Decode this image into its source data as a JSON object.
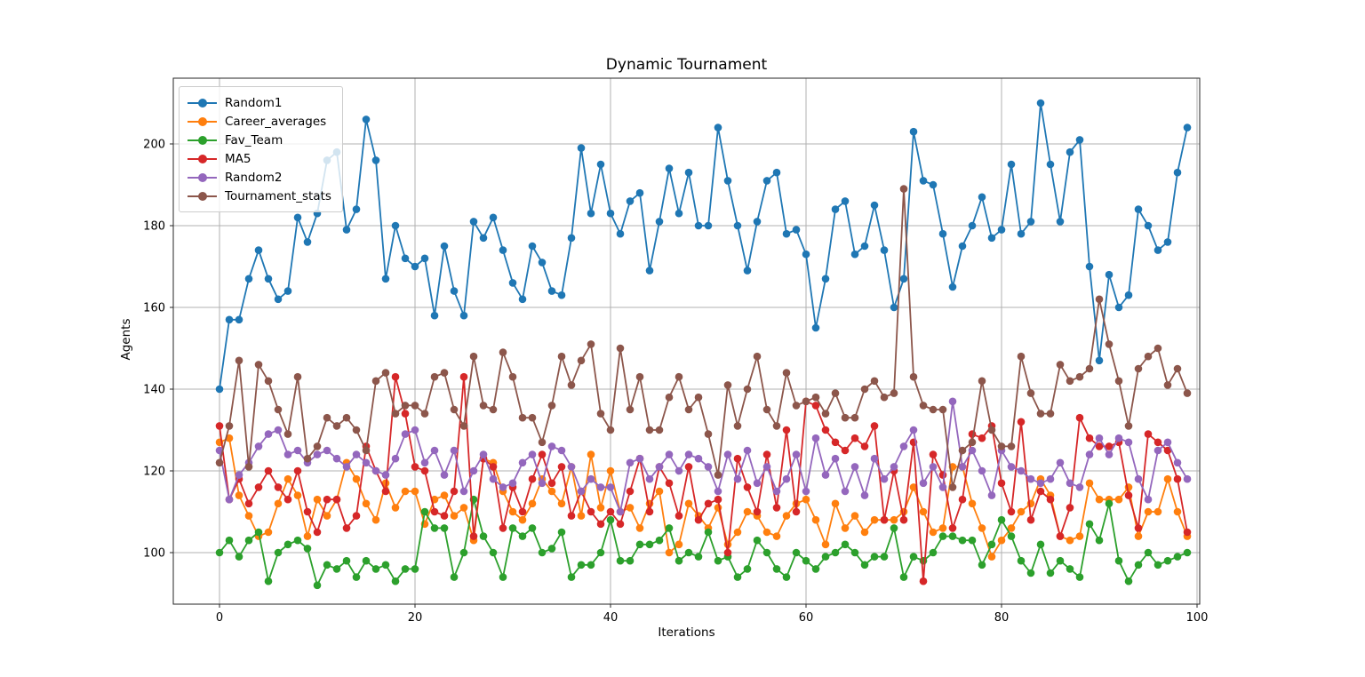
{
  "figure": {
    "title": "Dynamic Tournament",
    "background": "#ffffff"
  },
  "chart_data": {
    "type": "line",
    "title": "Dynamic Tournament",
    "xlabel": "Iterations",
    "ylabel": "Agents",
    "x_ticks": [
      0,
      20,
      40,
      60,
      80,
      100
    ],
    "y_ticks": [
      100,
      120,
      140,
      160,
      180,
      200
    ],
    "xlim": [
      -4.7,
      100.3
    ],
    "ylim": [
      87.4,
      216.1
    ],
    "grid": true,
    "legend_position": "upper left",
    "marker": "o",
    "grid_color": "#b0b0b0",
    "spine_color": "#262626",
    "series": [
      {
        "name": "Random1",
        "color": "#1f77b4",
        "values": [
          140,
          157,
          157,
          167,
          174,
          167,
          162,
          164,
          182,
          176,
          183,
          196,
          198,
          179,
          184,
          206,
          196,
          167,
          180,
          172,
          170,
          172,
          158,
          175,
          164,
          158,
          181,
          177,
          182,
          174,
          166,
          162,
          175,
          171,
          164,
          163,
          177,
          199,
          183,
          195,
          183,
          178,
          186,
          188,
          169,
          181,
          194,
          183,
          193,
          180,
          180,
          204,
          191,
          180,
          169,
          181,
          191,
          193,
          178,
          179,
          173,
          155,
          167,
          184,
          186,
          173,
          175,
          185,
          174,
          160,
          167,
          203,
          191,
          190,
          178,
          165,
          175,
          180,
          187,
          177,
          179,
          195,
          178,
          181,
          210,
          195,
          181,
          198,
          201,
          170,
          147,
          168,
          160,
          163,
          184,
          180,
          174,
          176,
          193,
          204
        ]
      },
      {
        "name": "Career_averages",
        "color": "#ff7f0e",
        "values": [
          127,
          128,
          114,
          109,
          104,
          105,
          112,
          118,
          114,
          104,
          113,
          109,
          113,
          122,
          118,
          112,
          108,
          117,
          111,
          115,
          115,
          107,
          113,
          114,
          109,
          111,
          103,
          123,
          122,
          115,
          110,
          108,
          112,
          118,
          115,
          112,
          121,
          109,
          124,
          111,
          120,
          110,
          111,
          106,
          112,
          115,
          100,
          102,
          112,
          109,
          106,
          111,
          102,
          105,
          110,
          109,
          105,
          104,
          109,
          112,
          113,
          108,
          102,
          112,
          106,
          109,
          105,
          108,
          108,
          108,
          110,
          116,
          110,
          105,
          106,
          121,
          121,
          112,
          106,
          99,
          103,
          106,
          110,
          112,
          118,
          114,
          104,
          103,
          104,
          117,
          113,
          113,
          113,
          116,
          104,
          110,
          110,
          118,
          110,
          104
        ]
      },
      {
        "name": "Fav_Team",
        "color": "#2ca02c",
        "values": [
          100,
          103,
          99,
          103,
          105,
          93,
          100,
          102,
          103,
          101,
          92,
          97,
          96,
          98,
          94,
          98,
          96,
          97,
          93,
          96,
          96,
          110,
          106,
          106,
          94,
          100,
          113,
          104,
          100,
          94,
          106,
          104,
          106,
          100,
          101,
          105,
          94,
          97,
          97,
          100,
          108,
          98,
          98,
          102,
          102,
          103,
          106,
          98,
          100,
          99,
          105,
          98,
          99,
          94,
          96,
          103,
          100,
          96,
          94,
          100,
          98,
          96,
          99,
          100,
          102,
          100,
          97,
          99,
          99,
          106,
          94,
          99,
          98,
          100,
          104,
          104,
          103,
          103,
          97,
          102,
          108,
          104,
          98,
          95,
          102,
          95,
          98,
          96,
          94,
          107,
          103,
          112,
          98,
          93,
          97,
          100,
          97,
          98,
          99,
          100
        ]
      },
      {
        "name": "MA5",
        "color": "#d62728",
        "values": [
          131,
          113,
          118,
          112,
          116,
          120,
          116,
          113,
          120,
          110,
          105,
          113,
          113,
          106,
          109,
          126,
          120,
          115,
          143,
          134,
          121,
          120,
          110,
          109,
          115,
          143,
          104,
          123,
          121,
          106,
          116,
          110,
          118,
          124,
          117,
          121,
          109,
          115,
          110,
          107,
          110,
          107,
          115,
          123,
          110,
          121,
          117,
          109,
          121,
          108,
          112,
          113,
          100,
          123,
          116,
          110,
          124,
          111,
          130,
          110,
          137,
          136,
          130,
          127,
          125,
          128,
          126,
          131,
          108,
          120,
          108,
          127,
          93,
          124,
          119,
          106,
          113,
          129,
          128,
          131,
          117,
          110,
          132,
          108,
          115,
          113,
          104,
          111,
          133,
          128,
          126,
          126,
          127,
          114,
          106,
          129,
          127,
          125,
          118,
          105
        ]
      },
      {
        "name": "Random2",
        "color": "#9467bd",
        "values": [
          125,
          113,
          119,
          122,
          126,
          129,
          130,
          124,
          125,
          122,
          124,
          125,
          123,
          121,
          124,
          122,
          120,
          119,
          123,
          129,
          130,
          122,
          125,
          119,
          125,
          115,
          120,
          124,
          118,
          116,
          117,
          122,
          124,
          117,
          126,
          125,
          121,
          115,
          118,
          116,
          116,
          110,
          122,
          123,
          118,
          121,
          124,
          120,
          124,
          123,
          121,
          115,
          124,
          118,
          125,
          117,
          121,
          115,
          118,
          124,
          115,
          128,
          119,
          123,
          115,
          121,
          114,
          123,
          118,
          121,
          126,
          130,
          117,
          121,
          116,
          137,
          121,
          125,
          120,
          114,
          125,
          121,
          120,
          118,
          117,
          118,
          122,
          117,
          116,
          124,
          128,
          124,
          128,
          127,
          118,
          113,
          125,
          127,
          122,
          118
        ]
      },
      {
        "name": "Tournament_stats",
        "color": "#8c564b",
        "values": [
          122,
          131,
          147,
          121,
          146,
          142,
          135,
          129,
          143,
          123,
          126,
          133,
          131,
          133,
          130,
          125,
          142,
          144,
          134,
          136,
          136,
          134,
          143,
          144,
          135,
          131,
          148,
          136,
          135,
          149,
          143,
          133,
          133,
          127,
          136,
          148,
          141,
          147,
          151,
          134,
          130,
          150,
          135,
          143,
          130,
          130,
          138,
          143,
          135,
          138,
          129,
          119,
          141,
          131,
          140,
          148,
          135,
          131,
          144,
          136,
          137,
          138,
          134,
          139,
          133,
          133,
          140,
          142,
          138,
          139,
          189,
          143,
          136,
          135,
          135,
          116,
          125,
          127,
          142,
          130,
          126,
          126,
          148,
          139,
          134,
          134,
          146,
          142,
          143,
          145,
          162,
          151,
          142,
          131,
          145,
          148,
          150,
          141,
          145,
          139
        ]
      }
    ]
  }
}
